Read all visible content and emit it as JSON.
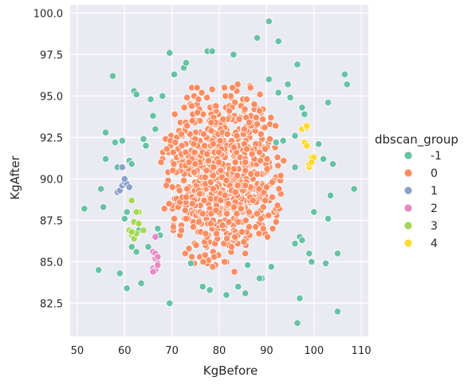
{
  "chart_data": {
    "type": "scatter",
    "title": "",
    "xlabel": "KgBefore",
    "ylabel": "KgAfter",
    "xlim": [
      48.5,
      111.5
    ],
    "ylim": [
      80.5,
      100.5
    ],
    "xticks": [
      50,
      60,
      70,
      80,
      90,
      100,
      110
    ],
    "yticks": [
      82.5,
      85.0,
      87.5,
      90.0,
      92.5,
      95.0,
      97.5,
      100.0
    ],
    "xtick_labels": [
      "50",
      "60",
      "70",
      "80",
      "90",
      "100",
      "110"
    ],
    "ytick_labels": [
      "82.5",
      "85.0",
      "87.5",
      "90.0",
      "92.5",
      "95.0",
      "97.5",
      "100.0"
    ],
    "grid": true,
    "legend": {
      "title": "dbscan_group",
      "placement": "right"
    },
    "series": [
      {
        "name": "-1",
        "color": "#66c2a5",
        "x": [
          51.5,
          54.5,
          55.0,
          56.0,
          56.0,
          55.5,
          57.5,
          58.0,
          58.5,
          59.0,
          59.5,
          60.0,
          60.5,
          61.0,
          61.5,
          62.0,
          62.5,
          63.0,
          63.5,
          64.0,
          64.5,
          65.0,
          66.0,
          67.0,
          67.5,
          69.5,
          69.5,
          70.5,
          72.5,
          73.0,
          74.0,
          77.5,
          78.5,
          84.0,
          86.0,
          88.0,
          89.0,
          90.5,
          91.0,
          92.0,
          92.5,
          93.5,
          94.5,
          95.0,
          96.0,
          96.5,
          97.0,
          97.5,
          98.0,
          99.0,
          100.0,
          101.0,
          102.5,
          103.0,
          103.0,
          103.5,
          104.0,
          105.0,
          106.5,
          107.0,
          108.5,
          96.5,
          97.0,
          96.0,
          85.5,
          88.5,
          92.5,
          62.5,
          61.5,
          60.5,
          65.5,
          68.0,
          66.5,
          96.0,
          102.0,
          105.0,
          97.5,
          99.5,
          83.0,
          81.5,
          78.0,
          76.5,
          90.5
        ],
        "y": [
          88.2,
          84.5,
          89.4,
          92.8,
          91.2,
          88.3,
          96.2,
          92.2,
          90.7,
          84.3,
          92.3,
          87.6,
          83.4,
          91.1,
          90.9,
          95.3,
          95.1,
          86.9,
          83.7,
          92.4,
          92.0,
          85.9,
          93.8,
          87.0,
          86.6,
          97.6,
          82.5,
          96.3,
          96.7,
          97.0,
          84.9,
          97.7,
          97.7,
          83.5,
          84.8,
          98.5,
          84.0,
          99.5,
          84.7,
          92.2,
          98.3,
          92.3,
          95.7,
          94.9,
          86.1,
          96.9,
          82.8,
          94.3,
          93.9,
          85.5,
          88.0,
          92.1,
          84.9,
          87.6,
          94.6,
          89.0,
          90.9,
          82.0,
          96.3,
          95.7,
          89.4,
          81.3,
          86.5,
          92.6,
          83.1,
          84.0,
          95.2,
          85.6,
          85.9,
          88.0,
          94.8,
          95.0,
          93.0,
          90.7,
          91.2,
          85.5,
          86.3,
          85.0,
          97.5,
          83.0,
          83.3,
          83.5,
          96.0
        ]
      },
      {
        "name": "0",
        "color": "#fc8d62",
        "x": [],
        "y": [],
        "generated_note_hidden": null
      },
      {
        "name": "1",
        "color": "#8da0cb",
        "x": [
          58.5,
          59.0,
          59.5,
          60.0,
          60.5,
          59.5,
          60.0,
          61.0
        ],
        "y": [
          89.2,
          89.3,
          89.6,
          89.8,
          89.7,
          90.7,
          90.0,
          89.5
        ]
      },
      {
        "name": "2",
        "color": "#e78ac3",
        "x": [
          66.0,
          66.5,
          67.0,
          66.0,
          66.5,
          67.0,
          66.5,
          66.0,
          66.5,
          67.0
        ],
        "y": [
          85.6,
          85.2,
          84.9,
          84.6,
          84.5,
          84.8,
          85.5,
          84.4,
          86.5,
          85.3
        ]
      },
      {
        "name": "3",
        "color": "#a6d854",
        "x": [
          61.0,
          61.5,
          62.0,
          62.5,
          63.0,
          61.5,
          62.5,
          61.5,
          62.0,
          64.0,
          63.0
        ],
        "y": [
          86.9,
          86.6,
          86.4,
          86.7,
          88.0,
          88.7,
          88.0,
          86.8,
          87.4,
          86.9,
          87.3
        ]
      },
      {
        "name": "4",
        "color": "#ffd92f",
        "x": [
          97.5,
          98.0,
          98.5,
          99.0,
          99.5,
          98.5,
          99.0,
          100.0,
          99.5,
          98.5
        ],
        "y": [
          93.0,
          92.2,
          93.1,
          90.7,
          91.3,
          92.0,
          90.9,
          91.3,
          91.0,
          93.2
        ]
      }
    ]
  }
}
